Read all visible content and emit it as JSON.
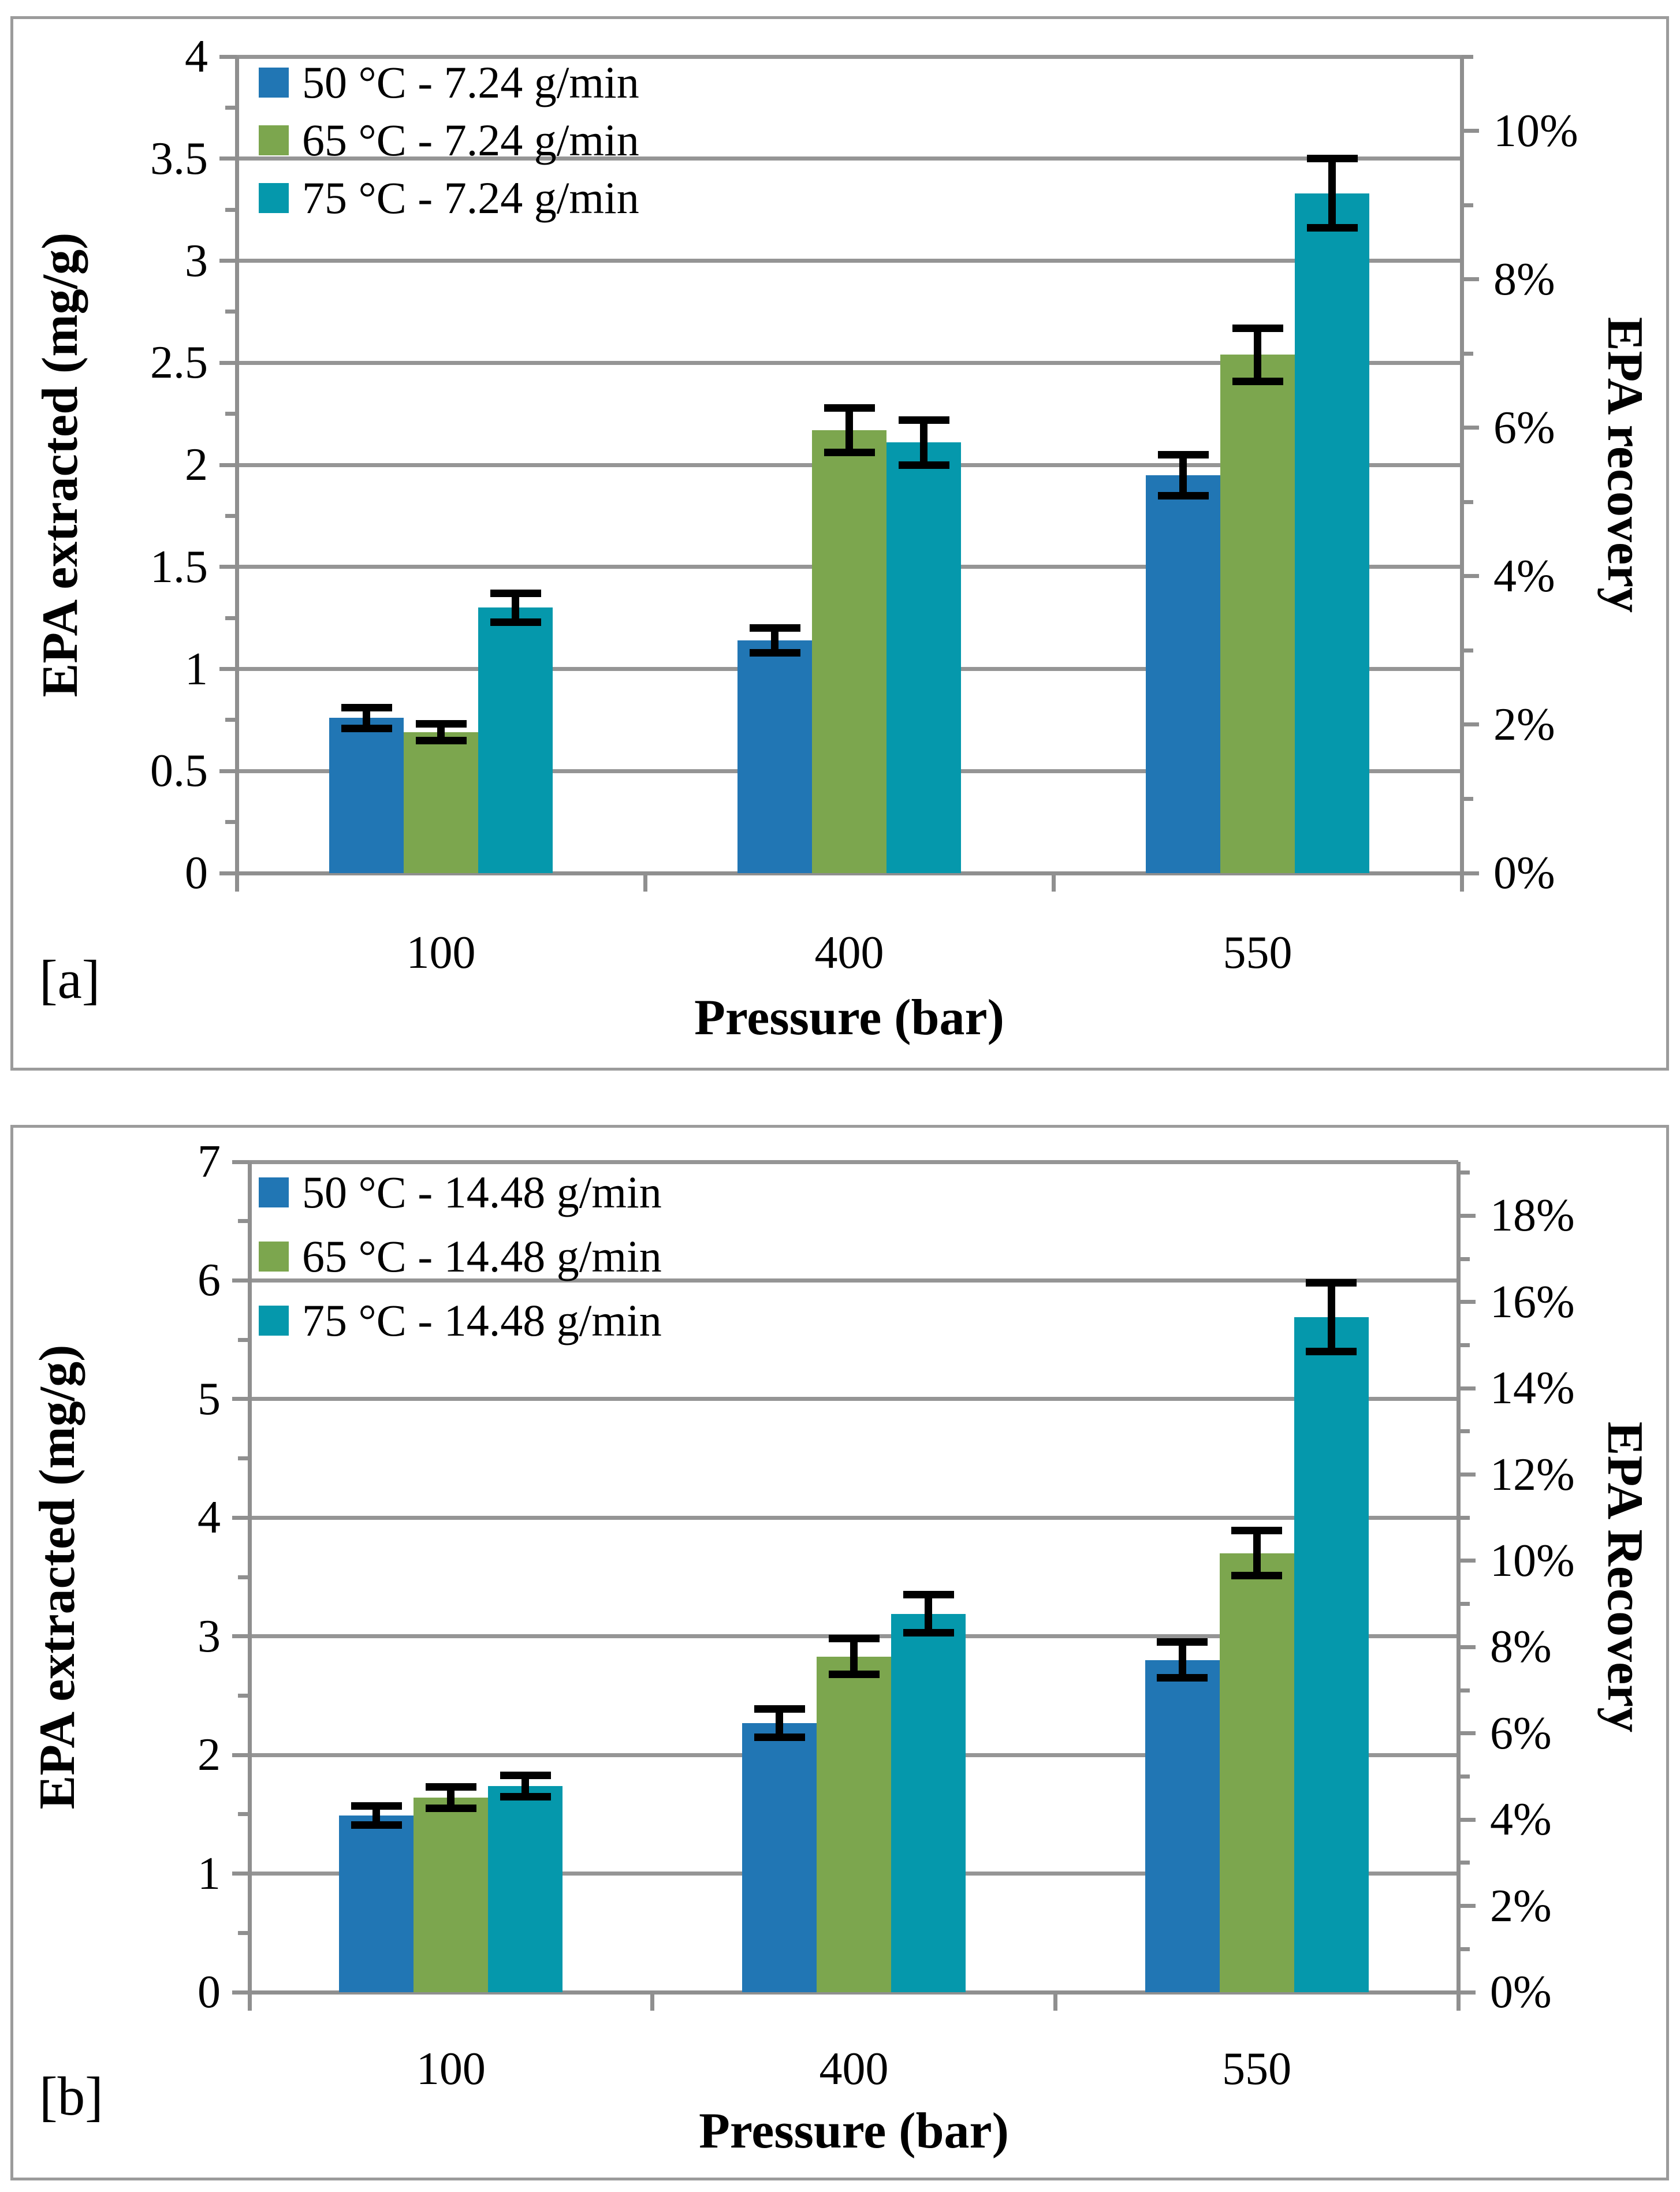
{
  "page": {
    "background": "#ffffff"
  },
  "colors": {
    "series_blue": "#2176b4",
    "series_green": "#7ca64e",
    "series_teal": "#0598ac",
    "gridline": "#959595",
    "axis_line": "#8f8f8f",
    "panel_border": "#9b9b9b",
    "error_bar": "#000000",
    "text": "#000000"
  },
  "chart_data": [
    {
      "id": "a",
      "type": "bar",
      "corner_label": "[a]",
      "categories": [
        "100",
        "400",
        "550"
      ],
      "series": [
        {
          "name": "50 °C - 7.24 g/min",
          "color_key": "series_blue",
          "values": [
            0.76,
            1.14,
            1.95
          ],
          "errors": [
            0.05,
            0.06,
            0.1
          ]
        },
        {
          "name": "65 °C - 7.24 g/min",
          "color_key": "series_green",
          "values": [
            0.69,
            2.17,
            2.54
          ],
          "errors": [
            0.04,
            0.11,
            0.13
          ]
        },
        {
          "name": "75 °C - 7.24 g/min",
          "color_key": "series_teal",
          "values": [
            1.3,
            2.11,
            3.33
          ],
          "errors": [
            0.07,
            0.11,
            0.17
          ]
        }
      ],
      "xlabel": "Pressure (bar)",
      "ylabel_left": "EPA extracted (mg/g)",
      "ylabel_right": "EPA recovery",
      "ylim_left": [
        0,
        4
      ],
      "left_major_step": 0.5,
      "left_minor_step": 0.25,
      "left_tick_labels": [
        "0",
        "0.5",
        "1",
        "1.5",
        "2",
        "2.5",
        "3",
        "3.5",
        "4"
      ],
      "right_axis_max_pct": 11,
      "right_major_step_pct": 2,
      "right_minor_step_pct": 1,
      "right_tick_labels": [
        "0%",
        "2%",
        "4%",
        "6%",
        "8%",
        "10%"
      ],
      "grid": true,
      "legend_position": "top-left-inside"
    },
    {
      "id": "b",
      "type": "bar",
      "corner_label": "[b]",
      "categories": [
        "100",
        "400",
        "550"
      ],
      "series": [
        {
          "name": "50 °C - 14.48 g/min",
          "color_key": "series_blue",
          "values": [
            1.49,
            2.27,
            2.8
          ],
          "errors": [
            0.08,
            0.12,
            0.15
          ]
        },
        {
          "name": "65 °C - 14.48 g/min",
          "color_key": "series_green",
          "values": [
            1.64,
            2.83,
            3.7
          ],
          "errors": [
            0.09,
            0.15,
            0.19
          ]
        },
        {
          "name": "75 °C - 14.48 g/min",
          "color_key": "series_teal",
          "values": [
            1.74,
            3.19,
            5.69
          ],
          "errors": [
            0.09,
            0.16,
            0.29
          ]
        }
      ],
      "xlabel": "Pressure (bar)",
      "ylabel_left": "EPA extracted (mg/g)",
      "ylabel_right": "EPA Recovery",
      "ylim_left": [
        0,
        7
      ],
      "left_major_step": 1,
      "left_minor_step": 0.5,
      "left_tick_labels": [
        "0",
        "1",
        "2",
        "3",
        "4",
        "5",
        "6",
        "7"
      ],
      "right_axis_max_pct": 19.25,
      "right_major_step_pct": 2,
      "right_minor_step_pct": 1,
      "right_tick_labels": [
        "0%",
        "2%",
        "4%",
        "6%",
        "8%",
        "10%",
        "12%",
        "14%",
        "16%",
        "18%"
      ],
      "grid": true,
      "legend_position": "top-left-inside"
    }
  ]
}
